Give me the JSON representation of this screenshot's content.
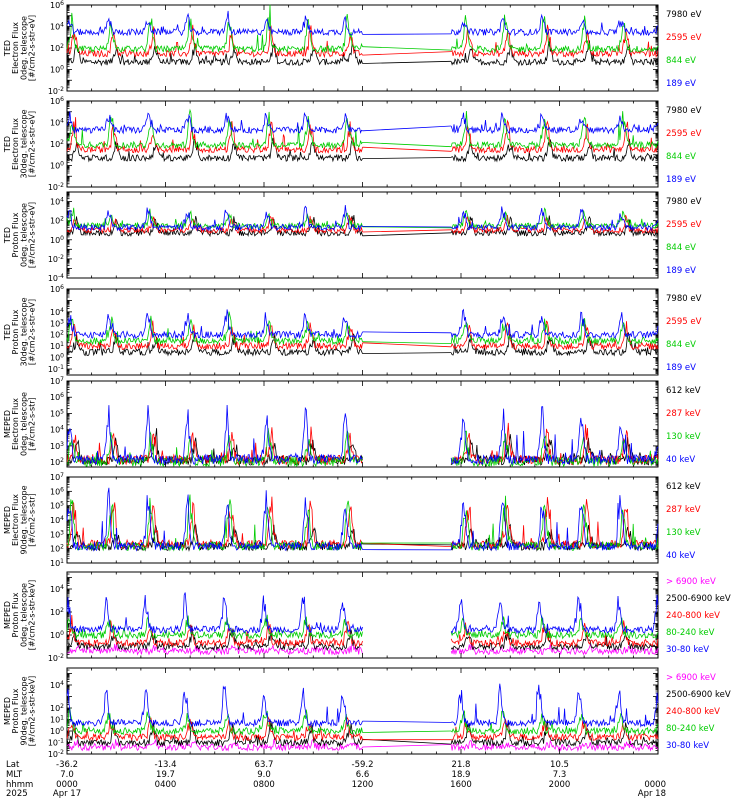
{
  "chart_data": [
    {
      "type": "line",
      "instrument": "TED",
      "ylabel": [
        "TED",
        "Electron Flux",
        "0deg. telescope",
        "[#/cm2-s-str-eV]"
      ],
      "yscale": "log",
      "ylim": [
        0.01,
        1000000
      ],
      "tick_labels": [
        [
          1000000,
          "10^6"
        ],
        [
          10000,
          "10^4"
        ],
        [
          100,
          "10^2"
        ],
        [
          1,
          "10^0"
        ],
        [
          0.01,
          "10^-2"
        ]
      ],
      "series": [
        {
          "name": "7980 eV",
          "color": "#000000",
          "base": 5,
          "spike": 300
        },
        {
          "name": "2595 eV",
          "color": "#ff0000",
          "base": 30,
          "spike": 8000
        },
        {
          "name": "844 eV",
          "color": "#00cc00",
          "base": 80,
          "spike": 100000
        },
        {
          "name": "189 eV",
          "color": "#0000ff",
          "base": 3000,
          "spike": 80000
        }
      ]
    },
    {
      "type": "line",
      "instrument": "TED",
      "ylabel": [
        "TED",
        "Electron Flux",
        "30deg. telescope",
        "[#/cm2-s-str-eV]"
      ],
      "yscale": "log",
      "ylim": [
        0.01,
        1000000
      ],
      "tick_labels": [
        [
          1000000,
          "10^6"
        ],
        [
          10000,
          "10^4"
        ],
        [
          100,
          "10^2"
        ],
        [
          1,
          "10^0"
        ],
        [
          0.01,
          "10^-2"
        ]
      ],
      "series": [
        {
          "name": "7980 eV",
          "color": "#000000",
          "base": 5,
          "spike": 300
        },
        {
          "name": "2595 eV",
          "color": "#ff0000",
          "base": 30,
          "spike": 8000
        },
        {
          "name": "844 eV",
          "color": "#00cc00",
          "base": 80,
          "spike": 100000
        },
        {
          "name": "189 eV",
          "color": "#0000ff",
          "base": 2000,
          "spike": 80000
        }
      ]
    },
    {
      "type": "line",
      "instrument": "TED",
      "ylabel": [
        "TED",
        "Proton Flux",
        "0deg. telescope",
        "[#/cm2-s-str-eV]"
      ],
      "yscale": "log",
      "ylim": [
        0.0001,
        100000
      ],
      "tick_labels": [
        [
          10000,
          "10^4"
        ],
        [
          100,
          "10^2"
        ],
        [
          1,
          "10^0"
        ],
        [
          0.01,
          "10^-2"
        ],
        [
          0.0001,
          "10^-4"
        ]
      ],
      "series": [
        {
          "name": "7980 eV",
          "color": "#000000",
          "base": 5,
          "spike": 200
        },
        {
          "name": "2595 eV",
          "color": "#ff0000",
          "base": 10,
          "spike": 300
        },
        {
          "name": "844 eV",
          "color": "#00cc00",
          "base": 30,
          "spike": 1000
        },
        {
          "name": "189 eV",
          "color": "#0000ff",
          "base": 20,
          "spike": 3000
        }
      ]
    },
    {
      "type": "line",
      "instrument": "TED",
      "ylabel": [
        "TED",
        "Proton Flux",
        "30deg. telescope",
        "[#/cm2-s-str-eV]"
      ],
      "yscale": "log",
      "ylim": [
        0.03,
        1000000
      ],
      "tick_labels": [
        [
          1000000,
          "10^6"
        ],
        [
          10000,
          "10^4"
        ],
        [
          1000,
          "10^3"
        ],
        [
          100,
          "10^2"
        ],
        [
          10,
          "10^1"
        ],
        [
          1,
          "10^0"
        ],
        [
          0.1,
          "10^-1"
        ]
      ],
      "series": [
        {
          "name": "7980 eV",
          "color": "#000000",
          "base": 3,
          "spike": 100
        },
        {
          "name": "2595 eV",
          "color": "#ff0000",
          "base": 10,
          "spike": 1000
        },
        {
          "name": "844 eV",
          "color": "#00cc00",
          "base": 30,
          "spike": 3000
        },
        {
          "name": "189 eV",
          "color": "#0000ff",
          "base": 100,
          "spike": 10000
        }
      ]
    },
    {
      "type": "line",
      "instrument": "MEPED",
      "ylabel": [
        "MEPED",
        "Electron Flux",
        "0deg. telescope",
        "[#/cm2-s-str]"
      ],
      "yscale": "log",
      "ylim": [
        50,
        10000000
      ],
      "tick_labels": [
        [
          10000000,
          "10^7"
        ],
        [
          1000000,
          "10^6"
        ],
        [
          100000,
          "10^5"
        ],
        [
          10000,
          "10^4"
        ],
        [
          1000,
          "10^3"
        ],
        [
          100,
          "10^2"
        ]
      ],
      "series": [
        {
          "name": "612 keV",
          "color": "#000000",
          "base": 130,
          "spike": 3000
        },
        {
          "name": "287 keV",
          "color": "#ff0000",
          "base": 140,
          "spike": 10000
        },
        {
          "name": "130 keV",
          "color": "#00cc00",
          "base": 110,
          "spike": 5000
        },
        {
          "name": "40 keV",
          "color": "#0000ff",
          "base": 150,
          "spike": 200000
        }
      ]
    },
    {
      "type": "line",
      "instrument": "MEPED",
      "ylabel": [
        "MEPED",
        "Electron Flux",
        "90deg. telescope",
        "[#/cm2-s-str]"
      ],
      "yscale": "log",
      "ylim": [
        10,
        10000000
      ],
      "tick_labels": [
        [
          10000000,
          "10^7"
        ],
        [
          1000000,
          "10^6"
        ],
        [
          100000,
          "10^5"
        ],
        [
          10000,
          "10^4"
        ],
        [
          1000,
          "10^3"
        ],
        [
          100,
          "10^2"
        ],
        [
          10,
          "10^1"
        ]
      ],
      "series": [
        {
          "name": "612 keV",
          "color": "#000000",
          "base": 150,
          "spike": 3000
        },
        {
          "name": "287 keV",
          "color": "#ff0000",
          "base": 200,
          "spike": 300000
        },
        {
          "name": "130 keV",
          "color": "#00cc00",
          "base": 150,
          "spike": 500000
        },
        {
          "name": "40 keV",
          "color": "#0000ff",
          "base": 150,
          "spike": 1000000
        }
      ]
    },
    {
      "type": "line",
      "instrument": "MEPED",
      "ylabel": [
        "MEPED",
        "Proton Flux",
        "0deg. telescope",
        "[#/cm2-s-str-keV]"
      ],
      "yscale": "log",
      "ylim": [
        0.01,
        300000
      ],
      "tick_labels": [
        [
          10000,
          "10^4"
        ],
        [
          100,
          "10^2"
        ],
        [
          1,
          "10^0"
        ],
        [
          0.01,
          "10^-2"
        ]
      ],
      "series": [
        {
          "name": "> 6900 keV",
          "color": "#ff00ff",
          "base": 0.04,
          "spike": 0.1
        },
        {
          "name": "2500-6900 keV",
          "color": "#000000",
          "base": 0.1,
          "spike": 3
        },
        {
          "name": "240-800 keV",
          "color": "#ff0000",
          "base": 0.2,
          "spike": 10
        },
        {
          "name": "80-240 keV",
          "color": "#00cc00",
          "base": 1,
          "spike": 30
        },
        {
          "name": "30-80 keV",
          "color": "#0000ff",
          "base": 3,
          "spike": 3000
        }
      ]
    },
    {
      "type": "line",
      "instrument": "MEPED",
      "ylabel": [
        "MEPED",
        "Proton Flux",
        "90deg. telescope",
        "[#/cm2-s-str-keV]"
      ],
      "yscale": "log",
      "ylim": [
        0.01,
        300000
      ],
      "tick_labels": [
        [
          10000,
          "10^4"
        ],
        [
          100,
          "10^2"
        ],
        [
          10,
          "10^1"
        ],
        [
          1,
          "10^0"
        ],
        [
          0.1,
          "10^-1"
        ],
        [
          0.01,
          "10^-2"
        ]
      ],
      "series": [
        {
          "name": "> 6900 keV",
          "color": "#ff00ff",
          "base": 0.04,
          "spike": 0.1
        },
        {
          "name": "2500-6900 keV",
          "color": "#000000",
          "base": 0.1,
          "spike": 5
        },
        {
          "name": "240-800 keV",
          "color": "#ff0000",
          "base": 0.3,
          "spike": 10
        },
        {
          "name": "80-240 keV",
          "color": "#00cc00",
          "base": 1,
          "spike": 50
        },
        {
          "name": "30-80 keV",
          "color": "#0000ff",
          "base": 5,
          "spike": 10000
        }
      ]
    }
  ],
  "x_axis": {
    "range_hours": [
      0,
      24
    ],
    "data_gap_hours": [
      12.0,
      15.6
    ],
    "row_labels": [
      "Lat",
      "MLT",
      "hhmm",
      "2025"
    ],
    "ticks": [
      {
        "t": 0,
        "lat": "-36.2",
        "mlt": "7.0",
        "hhmm": "0000",
        "date": "Apr 17"
      },
      {
        "t": 4,
        "lat": "-13.4",
        "mlt": "19.7",
        "hhmm": "0400",
        "date": ""
      },
      {
        "t": 8,
        "lat": "63.7",
        "mlt": "9.0",
        "hhmm": "0800",
        "date": ""
      },
      {
        "t": 12,
        "lat": "-59.2",
        "mlt": "6.6",
        "hhmm": "1200",
        "date": ""
      },
      {
        "t": 16,
        "lat": "21.8",
        "mlt": "18.9",
        "hhmm": "1600",
        "date": ""
      },
      {
        "t": 20,
        "lat": "10.5",
        "mlt": "7.3",
        "hhmm": "2000",
        "date": ""
      },
      {
        "t": 24,
        "lat": "",
        "mlt": "",
        "hhmm": "0000",
        "date": "Apr 18"
      }
    ]
  }
}
